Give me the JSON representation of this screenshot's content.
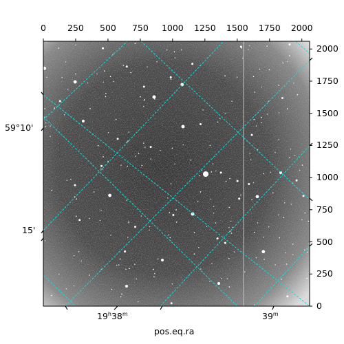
{
  "figure": {
    "axis_title": "pos.eq.ra",
    "top_ticks": [
      "0",
      "250",
      "500",
      "750",
      "1000",
      "1250",
      "1500",
      "1750",
      "2000"
    ],
    "right_ticks": [
      "0",
      "250",
      "500",
      "750",
      "1000",
      "1250",
      "1500",
      "1750",
      "2000"
    ],
    "ra_ticks": [
      {
        "h": "19",
        "hu": "h",
        "m": "38",
        "mu": "m"
      },
      {
        "h": "",
        "hu": "",
        "m": "39",
        "mu": "m"
      }
    ],
    "dec_ticks": [
      "59°10'",
      "15'"
    ],
    "grid_color": "#00e5e5",
    "image_tone": "grayscale"
  }
}
